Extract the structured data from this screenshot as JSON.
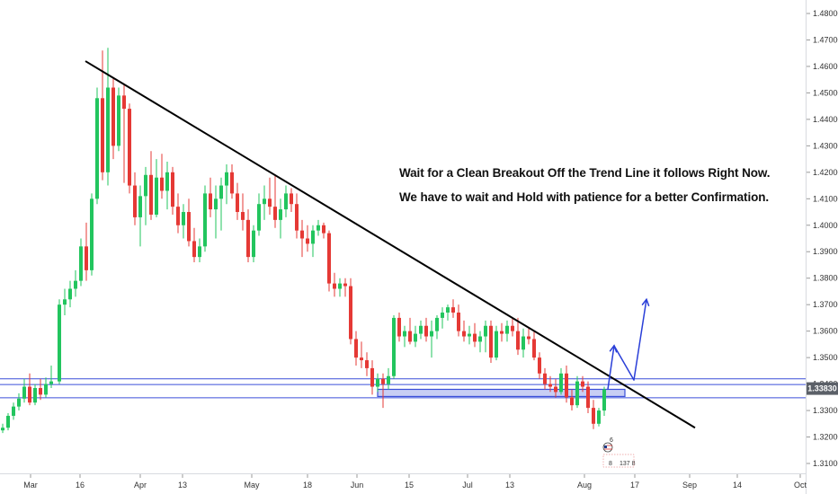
{
  "chart_data": {
    "type": "candlestick",
    "y_ticks": [
      "1.48000",
      "1.47000",
      "1.46000",
      "1.45000",
      "1.44000",
      "1.43000",
      "1.42000",
      "1.41000",
      "1.40000",
      "1.39000",
      "1.38000",
      "1.37000",
      "1.36000",
      "1.35000",
      "1.34000",
      "1.33000",
      "1.32000",
      "1.31000"
    ],
    "y_range": [
      1.3045,
      1.4865
    ],
    "x_ticks": [
      "Mar",
      "16",
      "Apr",
      "13",
      "May",
      "18",
      "Jun",
      "15",
      "Jul",
      "13",
      "Aug",
      "17",
      "Sep",
      "14",
      "Oct"
    ],
    "current_price": "1.33830",
    "annotations": [
      "Wait for a Clean Breakout Off the Trend Line it follows Right Now.",
      "We have to wait and Hold with patience for a better Confirmation."
    ],
    "trend_line": {
      "from": {
        "date": "Mar 16",
        "price": 1.462
      },
      "to": {
        "date": "Aug 31",
        "price": 1.3235
      }
    },
    "support_zone": {
      "price_low": 1.3353,
      "price_high": 1.338,
      "from": "Jun 8",
      "to": "Aug 13"
    },
    "horizontal_lines": [
      1.342,
      1.3398,
      1.3348
    ],
    "projection": [
      {
        "date": "Aug 9",
        "price": 1.338
      },
      {
        "date": "Aug 11",
        "price": 1.3545
      },
      {
        "date": "Aug 14",
        "price": 1.3415
      },
      {
        "date": "Aug 17",
        "price": 1.372
      }
    ],
    "colors": {
      "up": "#22c55e",
      "down": "#e53935",
      "trend": "#000000",
      "zone": "#3b4fd9",
      "projection": "#2a3fd8",
      "price_tag": "#5b6068"
    },
    "logo_text": {
      "a": "6",
      "b": "8",
      "c": "137 8"
    },
    "candles": [
      {
        "d": 0,
        "o": 1.3225,
        "h": 1.325,
        "l": 1.3215,
        "c": 1.3235
      },
      {
        "d": 2,
        "o": 1.3235,
        "h": 1.329,
        "l": 1.3225,
        "c": 1.328
      },
      {
        "d": 4,
        "o": 1.328,
        "h": 1.333,
        "l": 1.3265,
        "c": 1.3315
      },
      {
        "d": 6,
        "o": 1.3315,
        "h": 1.3365,
        "l": 1.33,
        "c": 1.3345
      },
      {
        "d": 8,
        "o": 1.3345,
        "h": 1.342,
        "l": 1.333,
        "c": 1.339
      },
      {
        "d": 10,
        "o": 1.339,
        "h": 1.344,
        "l": 1.332,
        "c": 1.333
      },
      {
        "d": 12,
        "o": 1.333,
        "h": 1.34,
        "l": 1.332,
        "c": 1.3385
      },
      {
        "d": 14,
        "o": 1.3385,
        "h": 1.342,
        "l": 1.334,
        "c": 1.336
      },
      {
        "d": 16,
        "o": 1.336,
        "h": 1.3425,
        "l": 1.335,
        "c": 1.34
      },
      {
        "d": 18,
        "o": 1.34,
        "h": 1.347,
        "l": 1.3385,
        "c": 1.341
      },
      {
        "d": 21,
        "o": 1.341,
        "h": 1.372,
        "l": 1.34,
        "c": 1.37
      },
      {
        "d": 23,
        "o": 1.37,
        "h": 1.376,
        "l": 1.366,
        "c": 1.372
      },
      {
        "d": 25,
        "o": 1.372,
        "h": 1.379,
        "l": 1.369,
        "c": 1.376
      },
      {
        "d": 27,
        "o": 1.376,
        "h": 1.383,
        "l": 1.373,
        "c": 1.379
      },
      {
        "d": 29,
        "o": 1.379,
        "h": 1.395,
        "l": 1.377,
        "c": 1.392
      },
      {
        "d": 31,
        "o": 1.392,
        "h": 1.401,
        "l": 1.379,
        "c": 1.383
      },
      {
        "d": 33,
        "o": 1.383,
        "h": 1.412,
        "l": 1.381,
        "c": 1.41
      },
      {
        "d": 35,
        "o": 1.41,
        "h": 1.452,
        "l": 1.408,
        "c": 1.448
      },
      {
        "d": 37,
        "o": 1.448,
        "h": 1.466,
        "l": 1.417,
        "c": 1.42
      },
      {
        "d": 39,
        "o": 1.42,
        "h": 1.467,
        "l": 1.415,
        "c": 1.452
      },
      {
        "d": 41,
        "o": 1.452,
        "h": 1.456,
        "l": 1.425,
        "c": 1.43
      },
      {
        "d": 43,
        "o": 1.43,
        "h": 1.452,
        "l": 1.428,
        "c": 1.449
      },
      {
        "d": 45,
        "o": 1.449,
        "h": 1.453,
        "l": 1.416,
        "c": 1.444
      },
      {
        "d": 47,
        "o": 1.444,
        "h": 1.446,
        "l": 1.412,
        "c": 1.415
      },
      {
        "d": 49,
        "o": 1.415,
        "h": 1.42,
        "l": 1.4,
        "c": 1.403
      },
      {
        "d": 51,
        "o": 1.403,
        "h": 1.415,
        "l": 1.392,
        "c": 1.411
      },
      {
        "d": 53,
        "o": 1.411,
        "h": 1.422,
        "l": 1.4,
        "c": 1.419
      },
      {
        "d": 55,
        "o": 1.419,
        "h": 1.428,
        "l": 1.402,
        "c": 1.404
      },
      {
        "d": 57,
        "o": 1.404,
        "h": 1.425,
        "l": 1.403,
        "c": 1.418
      },
      {
        "d": 59,
        "o": 1.418,
        "h": 1.427,
        "l": 1.41,
        "c": 1.413
      },
      {
        "d": 61,
        "o": 1.413,
        "h": 1.424,
        "l": 1.406,
        "c": 1.42
      },
      {
        "d": 63,
        "o": 1.42,
        "h": 1.422,
        "l": 1.404,
        "c": 1.407
      },
      {
        "d": 65,
        "o": 1.407,
        "h": 1.412,
        "l": 1.397,
        "c": 1.4
      },
      {
        "d": 67,
        "o": 1.4,
        "h": 1.408,
        "l": 1.395,
        "c": 1.405
      },
      {
        "d": 69,
        "o": 1.405,
        "h": 1.41,
        "l": 1.392,
        "c": 1.394
      },
      {
        "d": 71,
        "o": 1.394,
        "h": 1.399,
        "l": 1.386,
        "c": 1.388
      },
      {
        "d": 73,
        "o": 1.388,
        "h": 1.395,
        "l": 1.386,
        "c": 1.392
      },
      {
        "d": 75,
        "o": 1.392,
        "h": 1.415,
        "l": 1.39,
        "c": 1.412
      },
      {
        "d": 77,
        "o": 1.412,
        "h": 1.418,
        "l": 1.403,
        "c": 1.406
      },
      {
        "d": 79,
        "o": 1.406,
        "h": 1.415,
        "l": 1.395,
        "c": 1.41
      },
      {
        "d": 81,
        "o": 1.41,
        "h": 1.418,
        "l": 1.398,
        "c": 1.415
      },
      {
        "d": 83,
        "o": 1.415,
        "h": 1.423,
        "l": 1.408,
        "c": 1.42
      },
      {
        "d": 85,
        "o": 1.42,
        "h": 1.423,
        "l": 1.41,
        "c": 1.412
      },
      {
        "d": 87,
        "o": 1.412,
        "h": 1.416,
        "l": 1.402,
        "c": 1.405
      },
      {
        "d": 89,
        "o": 1.405,
        "h": 1.412,
        "l": 1.398,
        "c": 1.402
      },
      {
        "d": 91,
        "o": 1.402,
        "h": 1.406,
        "l": 1.386,
        "c": 1.388
      },
      {
        "d": 93,
        "o": 1.388,
        "h": 1.4,
        "l": 1.386,
        "c": 1.398
      },
      {
        "d": 95,
        "o": 1.398,
        "h": 1.412,
        "l": 1.396,
        "c": 1.408
      },
      {
        "d": 97,
        "o": 1.408,
        "h": 1.415,
        "l": 1.402,
        "c": 1.41
      },
      {
        "d": 99,
        "o": 1.41,
        "h": 1.418,
        "l": 1.404,
        "c": 1.407
      },
      {
        "d": 101,
        "o": 1.407,
        "h": 1.419,
        "l": 1.399,
        "c": 1.402
      },
      {
        "d": 103,
        "o": 1.402,
        "h": 1.41,
        "l": 1.395,
        "c": 1.406
      },
      {
        "d": 105,
        "o": 1.406,
        "h": 1.415,
        "l": 1.403,
        "c": 1.412
      },
      {
        "d": 107,
        "o": 1.412,
        "h": 1.414,
        "l": 1.405,
        "c": 1.408
      },
      {
        "d": 109,
        "o": 1.408,
        "h": 1.412,
        "l": 1.395,
        "c": 1.398
      },
      {
        "d": 111,
        "o": 1.398,
        "h": 1.402,
        "l": 1.388,
        "c": 1.395
      },
      {
        "d": 113,
        "o": 1.395,
        "h": 1.4,
        "l": 1.39,
        "c": 1.393
      },
      {
        "d": 115,
        "o": 1.393,
        "h": 1.4,
        "l": 1.388,
        "c": 1.398
      },
      {
        "d": 117,
        "o": 1.398,
        "h": 1.402,
        "l": 1.396,
        "c": 1.4
      },
      {
        "d": 119,
        "o": 1.4,
        "h": 1.401,
        "l": 1.395,
        "c": 1.397
      },
      {
        "d": 121,
        "o": 1.397,
        "h": 1.398,
        "l": 1.375,
        "c": 1.378
      },
      {
        "d": 123,
        "o": 1.378,
        "h": 1.382,
        "l": 1.373,
        "c": 1.376
      },
      {
        "d": 125,
        "o": 1.376,
        "h": 1.38,
        "l": 1.373,
        "c": 1.378
      },
      {
        "d": 127,
        "o": 1.378,
        "h": 1.38,
        "l": 1.373,
        "c": 1.377
      },
      {
        "d": 129,
        "o": 1.377,
        "h": 1.38,
        "l": 1.355,
        "c": 1.357
      },
      {
        "d": 131,
        "o": 1.357,
        "h": 1.36,
        "l": 1.347,
        "c": 1.35
      },
      {
        "d": 133,
        "o": 1.35,
        "h": 1.356,
        "l": 1.346,
        "c": 1.349
      },
      {
        "d": 135,
        "o": 1.349,
        "h": 1.352,
        "l": 1.343,
        "c": 1.346
      },
      {
        "d": 137,
        "o": 1.346,
        "h": 1.349,
        "l": 1.336,
        "c": 1.339
      },
      {
        "d": 139,
        "o": 1.339,
        "h": 1.344,
        "l": 1.337,
        "c": 1.342
      },
      {
        "d": 141,
        "o": 1.342,
        "h": 1.344,
        "l": 1.331,
        "c": 1.34
      },
      {
        "d": 143,
        "o": 1.34,
        "h": 1.346,
        "l": 1.338,
        "c": 1.343
      },
      {
        "d": 145,
        "o": 1.343,
        "h": 1.366,
        "l": 1.342,
        "c": 1.365
      },
      {
        "d": 147,
        "o": 1.365,
        "h": 1.367,
        "l": 1.356,
        "c": 1.358
      },
      {
        "d": 149,
        "o": 1.358,
        "h": 1.362,
        "l": 1.354,
        "c": 1.36
      },
      {
        "d": 151,
        "o": 1.36,
        "h": 1.365,
        "l": 1.355,
        "c": 1.356
      },
      {
        "d": 153,
        "o": 1.356,
        "h": 1.362,
        "l": 1.354,
        "c": 1.359
      },
      {
        "d": 155,
        "o": 1.359,
        "h": 1.364,
        "l": 1.357,
        "c": 1.362
      },
      {
        "d": 157,
        "o": 1.362,
        "h": 1.365,
        "l": 1.356,
        "c": 1.358
      },
      {
        "d": 159,
        "o": 1.358,
        "h": 1.364,
        "l": 1.35,
        "c": 1.36
      },
      {
        "d": 161,
        "o": 1.36,
        "h": 1.366,
        "l": 1.357,
        "c": 1.365
      },
      {
        "d": 163,
        "o": 1.365,
        "h": 1.369,
        "l": 1.361,
        "c": 1.367
      },
      {
        "d": 165,
        "o": 1.367,
        "h": 1.37,
        "l": 1.364,
        "c": 1.369
      },
      {
        "d": 167,
        "o": 1.369,
        "h": 1.372,
        "l": 1.365,
        "c": 1.367
      },
      {
        "d": 169,
        "o": 1.367,
        "h": 1.37,
        "l": 1.358,
        "c": 1.36
      },
      {
        "d": 171,
        "o": 1.36,
        "h": 1.364,
        "l": 1.356,
        "c": 1.358
      },
      {
        "d": 173,
        "o": 1.358,
        "h": 1.362,
        "l": 1.355,
        "c": 1.359
      },
      {
        "d": 175,
        "o": 1.359,
        "h": 1.363,
        "l": 1.354,
        "c": 1.356
      },
      {
        "d": 177,
        "o": 1.356,
        "h": 1.36,
        "l": 1.352,
        "c": 1.358
      },
      {
        "d": 179,
        "o": 1.358,
        "h": 1.364,
        "l": 1.352,
        "c": 1.362
      },
      {
        "d": 181,
        "o": 1.362,
        "h": 1.364,
        "l": 1.348,
        "c": 1.35
      },
      {
        "d": 183,
        "o": 1.35,
        "h": 1.362,
        "l": 1.349,
        "c": 1.36
      },
      {
        "d": 185,
        "o": 1.36,
        "h": 1.363,
        "l": 1.356,
        "c": 1.359
      },
      {
        "d": 187,
        "o": 1.359,
        "h": 1.364,
        "l": 1.356,
        "c": 1.362
      },
      {
        "d": 189,
        "o": 1.362,
        "h": 1.365,
        "l": 1.358,
        "c": 1.36
      },
      {
        "d": 191,
        "o": 1.36,
        "h": 1.365,
        "l": 1.351,
        "c": 1.353
      },
      {
        "d": 193,
        "o": 1.353,
        "h": 1.361,
        "l": 1.35,
        "c": 1.358
      },
      {
        "d": 195,
        "o": 1.358,
        "h": 1.361,
        "l": 1.355,
        "c": 1.357
      },
      {
        "d": 197,
        "o": 1.357,
        "h": 1.36,
        "l": 1.349,
        "c": 1.35
      },
      {
        "d": 199,
        "o": 1.35,
        "h": 1.352,
        "l": 1.342,
        "c": 1.344
      },
      {
        "d": 201,
        "o": 1.344,
        "h": 1.346,
        "l": 1.338,
        "c": 1.34
      },
      {
        "d": 203,
        "o": 1.34,
        "h": 1.343,
        "l": 1.337,
        "c": 1.339
      },
      {
        "d": 205,
        "o": 1.339,
        "h": 1.342,
        "l": 1.335,
        "c": 1.337
      },
      {
        "d": 207,
        "o": 1.337,
        "h": 1.346,
        "l": 1.336,
        "c": 1.344
      },
      {
        "d": 209,
        "o": 1.344,
        "h": 1.347,
        "l": 1.333,
        "c": 1.335
      },
      {
        "d": 211,
        "o": 1.335,
        "h": 1.338,
        "l": 1.33,
        "c": 1.332
      },
      {
        "d": 213,
        "o": 1.332,
        "h": 1.343,
        "l": 1.331,
        "c": 1.341
      },
      {
        "d": 215,
        "o": 1.341,
        "h": 1.343,
        "l": 1.337,
        "c": 1.339
      },
      {
        "d": 217,
        "o": 1.339,
        "h": 1.341,
        "l": 1.329,
        "c": 1.331
      },
      {
        "d": 219,
        "o": 1.331,
        "h": 1.334,
        "l": 1.323,
        "c": 1.325
      },
      {
        "d": 221,
        "o": 1.325,
        "h": 1.331,
        "l": 1.324,
        "c": 1.33
      },
      {
        "d": 223,
        "o": 1.33,
        "h": 1.339,
        "l": 1.328,
        "c": 1.338
      }
    ]
  }
}
